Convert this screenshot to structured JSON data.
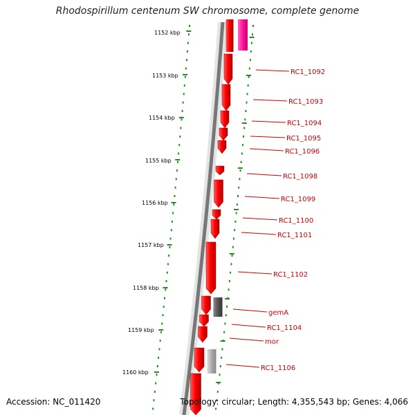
{
  "title": "Rhodospirillum centenum SW chromosome, complete genome",
  "footer": {
    "accession": "Accession: NC_011420",
    "summary": "Topology: circular; Length: 4,355,543 bp; Genes: 4,066"
  },
  "ruler": {
    "labels": [
      "1152 kbp",
      "1153 kbp",
      "1154 kbp",
      "1155 kbp",
      "1156 kbp",
      "1157 kbp",
      "1158 kbp",
      "1159 kbp",
      "1160 kbp"
    ]
  },
  "genes": [
    {
      "id": "RC1_1092",
      "label": "RC1_1092",
      "color": "#ff0000"
    },
    {
      "id": "RC1_1093",
      "label": "RC1_1093",
      "color": "#ff0000"
    },
    {
      "id": "RC1_1094",
      "label": "RC1_1094",
      "color": "#ff0000"
    },
    {
      "id": "RC1_1095",
      "label": "RC1_1095",
      "color": "#ff0000"
    },
    {
      "id": "RC1_1096",
      "label": "RC1_1096",
      "color": "#ff0000"
    },
    {
      "id": "RC1_1098",
      "label": "RC1_1098",
      "color": "#ff0000"
    },
    {
      "id": "RC1_1099",
      "label": "RC1_1099",
      "color": "#ff0000"
    },
    {
      "id": "RC1_1100",
      "label": "RC1_1100",
      "color": "#ff0000"
    },
    {
      "id": "RC1_1101",
      "label": "RC1_1101",
      "color": "#ff0000"
    },
    {
      "id": "RC1_1102",
      "label": "RC1_1102",
      "color": "#ff0000"
    },
    {
      "id": "gemA",
      "label": "gemA",
      "color": "#555555"
    },
    {
      "id": "RC1_1104",
      "label": "RC1_1104",
      "color": "#ff0000"
    },
    {
      "id": "mor",
      "label": "mor",
      "color": "#ff0000"
    },
    {
      "id": "RC1_1106",
      "label": "RC1_1106",
      "color": "#aaaaaa"
    }
  ],
  "colors": {
    "cds": "#ff0000",
    "trna": "#ff1493",
    "backbone": "#777777",
    "ruler_ticks": "#228b22",
    "label_text": "#cc0000"
  }
}
